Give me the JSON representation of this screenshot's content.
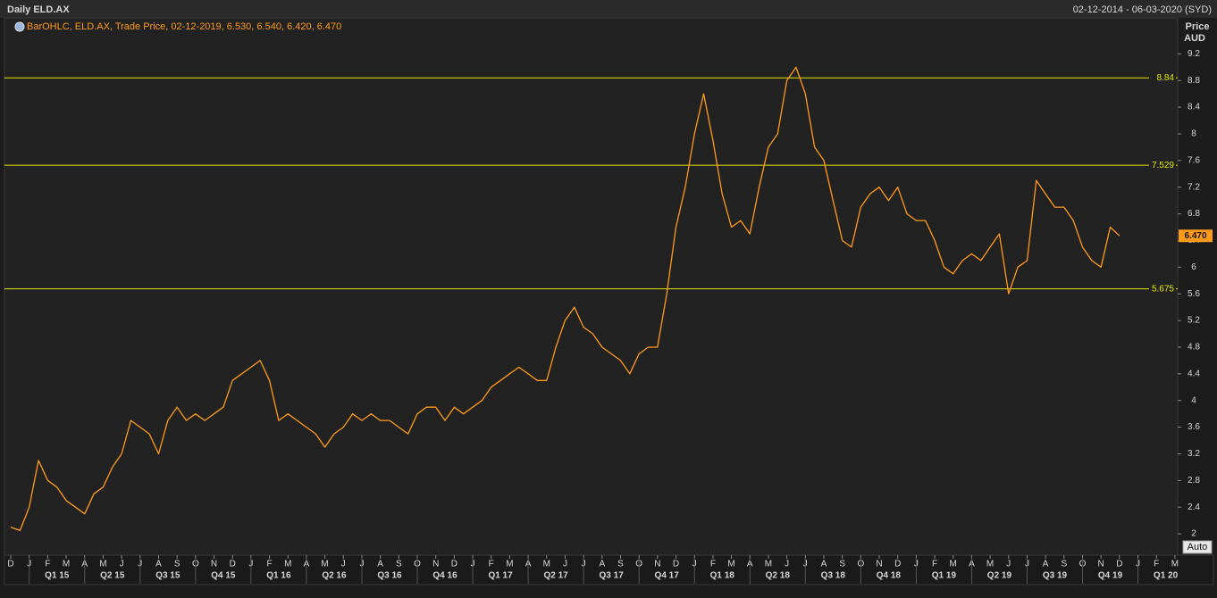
{
  "chart_data": {
    "type": "line",
    "title": "Daily ELD.AX",
    "subtitle": "02-12-2014 - 06-03-2020 (SYD)",
    "y_label": "Price",
    "y_unit": "AUD",
    "button": "Auto",
    "x": [
      0,
      0.5,
      1,
      1.5,
      2,
      2.5,
      3,
      3.5,
      4,
      4.5,
      5,
      5.5,
      6,
      6.5,
      7,
      7.5,
      8,
      8.5,
      9,
      9.5,
      10,
      10.5,
      11,
      11.5,
      12,
      12.5,
      13,
      13.5,
      14,
      14.5,
      15,
      15.5,
      16,
      16.5,
      17,
      17.5,
      18,
      18.5,
      19,
      19.5,
      20,
      20.5,
      21,
      21.5,
      22,
      22.5,
      23,
      23.5,
      24,
      24.5,
      25,
      25.5,
      26,
      26.5,
      27,
      27.5,
      28,
      28.5,
      29,
      29.5,
      30,
      30.5,
      31,
      31.5,
      32,
      32.5,
      33,
      33.5,
      34,
      34.5,
      35,
      35.5,
      36,
      36.5,
      37,
      37.5,
      38,
      38.5,
      39,
      39.5,
      40,
      40.5,
      41,
      41.5,
      42,
      42.5,
      43,
      43.5,
      44,
      44.5,
      45,
      45.5,
      46,
      46.5,
      47,
      47.5,
      48,
      48.5,
      49,
      49.5,
      50,
      50.5,
      51,
      51.5,
      52,
      52.5,
      53,
      53.5,
      54,
      54.5,
      55,
      55.5,
      56,
      56.5,
      57,
      57.5,
      58,
      58.5,
      59,
      59.5,
      60
    ],
    "series": [
      {
        "name": "BarOHLC, ELD.AX, Trade Price, 02-12-2019, 6.530, 6.540, 6.420, 6.470",
        "color": "#ff9a1a",
        "values": [
          2.1,
          2.05,
          2.4,
          3.1,
          2.8,
          2.7,
          2.5,
          2.4,
          2.3,
          2.6,
          2.7,
          3.0,
          3.2,
          3.7,
          3.6,
          3.5,
          3.2,
          3.7,
          3.9,
          3.7,
          3.8,
          3.7,
          3.8,
          3.9,
          4.3,
          4.4,
          4.5,
          4.6,
          4.3,
          3.7,
          3.8,
          3.7,
          3.6,
          3.5,
          3.3,
          3.5,
          3.6,
          3.8,
          3.7,
          3.8,
          3.7,
          3.7,
          3.6,
          3.5,
          3.8,
          3.9,
          3.9,
          3.7,
          3.9,
          3.8,
          3.9,
          4.0,
          4.2,
          4.3,
          4.4,
          4.5,
          4.4,
          4.3,
          4.3,
          4.8,
          5.2,
          5.4,
          5.1,
          5.0,
          4.8,
          4.7,
          4.6,
          4.4,
          4.7,
          4.8,
          4.8,
          5.6,
          6.6,
          7.2,
          8.0,
          8.6,
          7.9,
          7.1,
          6.6,
          6.7,
          6.5,
          7.2,
          7.8,
          8.0,
          8.8,
          9.0,
          8.6,
          7.8,
          7.6,
          7.0,
          6.4,
          6.3,
          6.9,
          7.1,
          7.2,
          7.0,
          7.2,
          6.8,
          6.7,
          6.7,
          6.4,
          6.0,
          5.9,
          6.1,
          6.2,
          6.1,
          6.3,
          6.5,
          5.6,
          6.0,
          6.1,
          7.3,
          7.1,
          6.9,
          6.9,
          6.7,
          6.3,
          6.1,
          6.0,
          6.6,
          6.47
        ]
      }
    ],
    "hlines": [
      {
        "value": 8.84,
        "color": "#e6e600"
      },
      {
        "value": 7.529,
        "color": "#e6e600"
      },
      {
        "value": 5.675,
        "color": "#e6e600"
      }
    ],
    "last_price": {
      "value": 6.47,
      "label": "6.470"
    },
    "xlim": [
      -0.34,
      63.15
    ],
    "ylim": [
      1.68,
      9.74
    ],
    "yticks": [
      2,
      2.4,
      2.8,
      3.2,
      3.6,
      4,
      4.4,
      4.8,
      5.2,
      5.6,
      6,
      6.4,
      6.8,
      7.2,
      7.6,
      8,
      8.4,
      8.8,
      9.2
    ],
    "xticks": [
      {
        "value": 0,
        "label": "D"
      },
      {
        "value": 1,
        "label": "J"
      },
      {
        "value": 2,
        "label": "F"
      },
      {
        "value": 3,
        "label": "M"
      },
      {
        "value": 4,
        "label": "A"
      },
      {
        "value": 5,
        "label": "M"
      },
      {
        "value": 6,
        "label": "J"
      },
      {
        "value": 7,
        "label": "J"
      },
      {
        "value": 8,
        "label": "A"
      },
      {
        "value": 9,
        "label": "S"
      },
      {
        "value": 10,
        "label": "O"
      },
      {
        "value": 11,
        "label": "N"
      },
      {
        "value": 12,
        "label": "D"
      },
      {
        "value": 13,
        "label": "J"
      },
      {
        "value": 14,
        "label": "F"
      },
      {
        "value": 15,
        "label": "M"
      },
      {
        "value": 16,
        "label": "A"
      },
      {
        "value": 17,
        "label": "M"
      },
      {
        "value": 18,
        "label": "J"
      },
      {
        "value": 19,
        "label": "J"
      },
      {
        "value": 20,
        "label": "A"
      },
      {
        "value": 21,
        "label": "S"
      },
      {
        "value": 22,
        "label": "O"
      },
      {
        "value": 23,
        "label": "N"
      },
      {
        "value": 24,
        "label": "D"
      },
      {
        "value": 25,
        "label": "J"
      },
      {
        "value": 26,
        "label": "F"
      },
      {
        "value": 27,
        "label": "M"
      },
      {
        "value": 28,
        "label": "A"
      },
      {
        "value": 29,
        "label": "M"
      },
      {
        "value": 30,
        "label": "J"
      },
      {
        "value": 31,
        "label": "J"
      },
      {
        "value": 32,
        "label": "A"
      },
      {
        "value": 33,
        "label": "S"
      },
      {
        "value": 34,
        "label": "O"
      },
      {
        "value": 35,
        "label": "N"
      },
      {
        "value": 36,
        "label": "D"
      },
      {
        "value": 37,
        "label": "J"
      },
      {
        "value": 38,
        "label": "F"
      },
      {
        "value": 39,
        "label": "M"
      },
      {
        "value": 40,
        "label": "A"
      },
      {
        "value": 41,
        "label": "M"
      },
      {
        "value": 42,
        "label": "J"
      },
      {
        "value": 43,
        "label": "J"
      },
      {
        "value": 44,
        "label": "A"
      },
      {
        "value": 45,
        "label": "S"
      },
      {
        "value": 46,
        "label": "O"
      },
      {
        "value": 47,
        "label": "N"
      },
      {
        "value": 48,
        "label": "D"
      },
      {
        "value": 49,
        "label": "J"
      },
      {
        "value": 50,
        "label": "F"
      },
      {
        "value": 51,
        "label": "M"
      },
      {
        "value": 52,
        "label": "A"
      },
      {
        "value": 53,
        "label": "M"
      },
      {
        "value": 54,
        "label": "J"
      },
      {
        "value": 55,
        "label": "J"
      },
      {
        "value": 56,
        "label": "A"
      },
      {
        "value": 57,
        "label": "S"
      },
      {
        "value": 58,
        "label": "O"
      },
      {
        "value": 59,
        "label": "N"
      },
      {
        "value": 60,
        "label": "D"
      },
      {
        "value": 61,
        "label": "J"
      },
      {
        "value": 62,
        "label": "F"
      },
      {
        "value": 63,
        "label": "M"
      }
    ],
    "quarter_ticks": [
      {
        "value": 2.5,
        "label": "Q1 15"
      },
      {
        "value": 5.5,
        "label": "Q2 15"
      },
      {
        "value": 8.5,
        "label": "Q3 15"
      },
      {
        "value": 11.5,
        "label": "Q4 15"
      },
      {
        "value": 14.5,
        "label": "Q1 16"
      },
      {
        "value": 17.5,
        "label": "Q2 16"
      },
      {
        "value": 20.5,
        "label": "Q3 16"
      },
      {
        "value": 23.5,
        "label": "Q4 16"
      },
      {
        "value": 26.5,
        "label": "Q1 17"
      },
      {
        "value": 29.5,
        "label": "Q2 17"
      },
      {
        "value": 32.5,
        "label": "Q3 17"
      },
      {
        "value": 35.5,
        "label": "Q4 17"
      },
      {
        "value": 38.5,
        "label": "Q1 18"
      },
      {
        "value": 41.5,
        "label": "Q2 18"
      },
      {
        "value": 44.5,
        "label": "Q3 18"
      },
      {
        "value": 47.5,
        "label": "Q4 18"
      },
      {
        "value": 50.5,
        "label": "Q1 19"
      },
      {
        "value": 53.5,
        "label": "Q2 19"
      },
      {
        "value": 56.5,
        "label": "Q3 19"
      },
      {
        "value": 59.5,
        "label": "Q4 19"
      },
      {
        "value": 62.5,
        "label": "Q1 20"
      }
    ]
  }
}
